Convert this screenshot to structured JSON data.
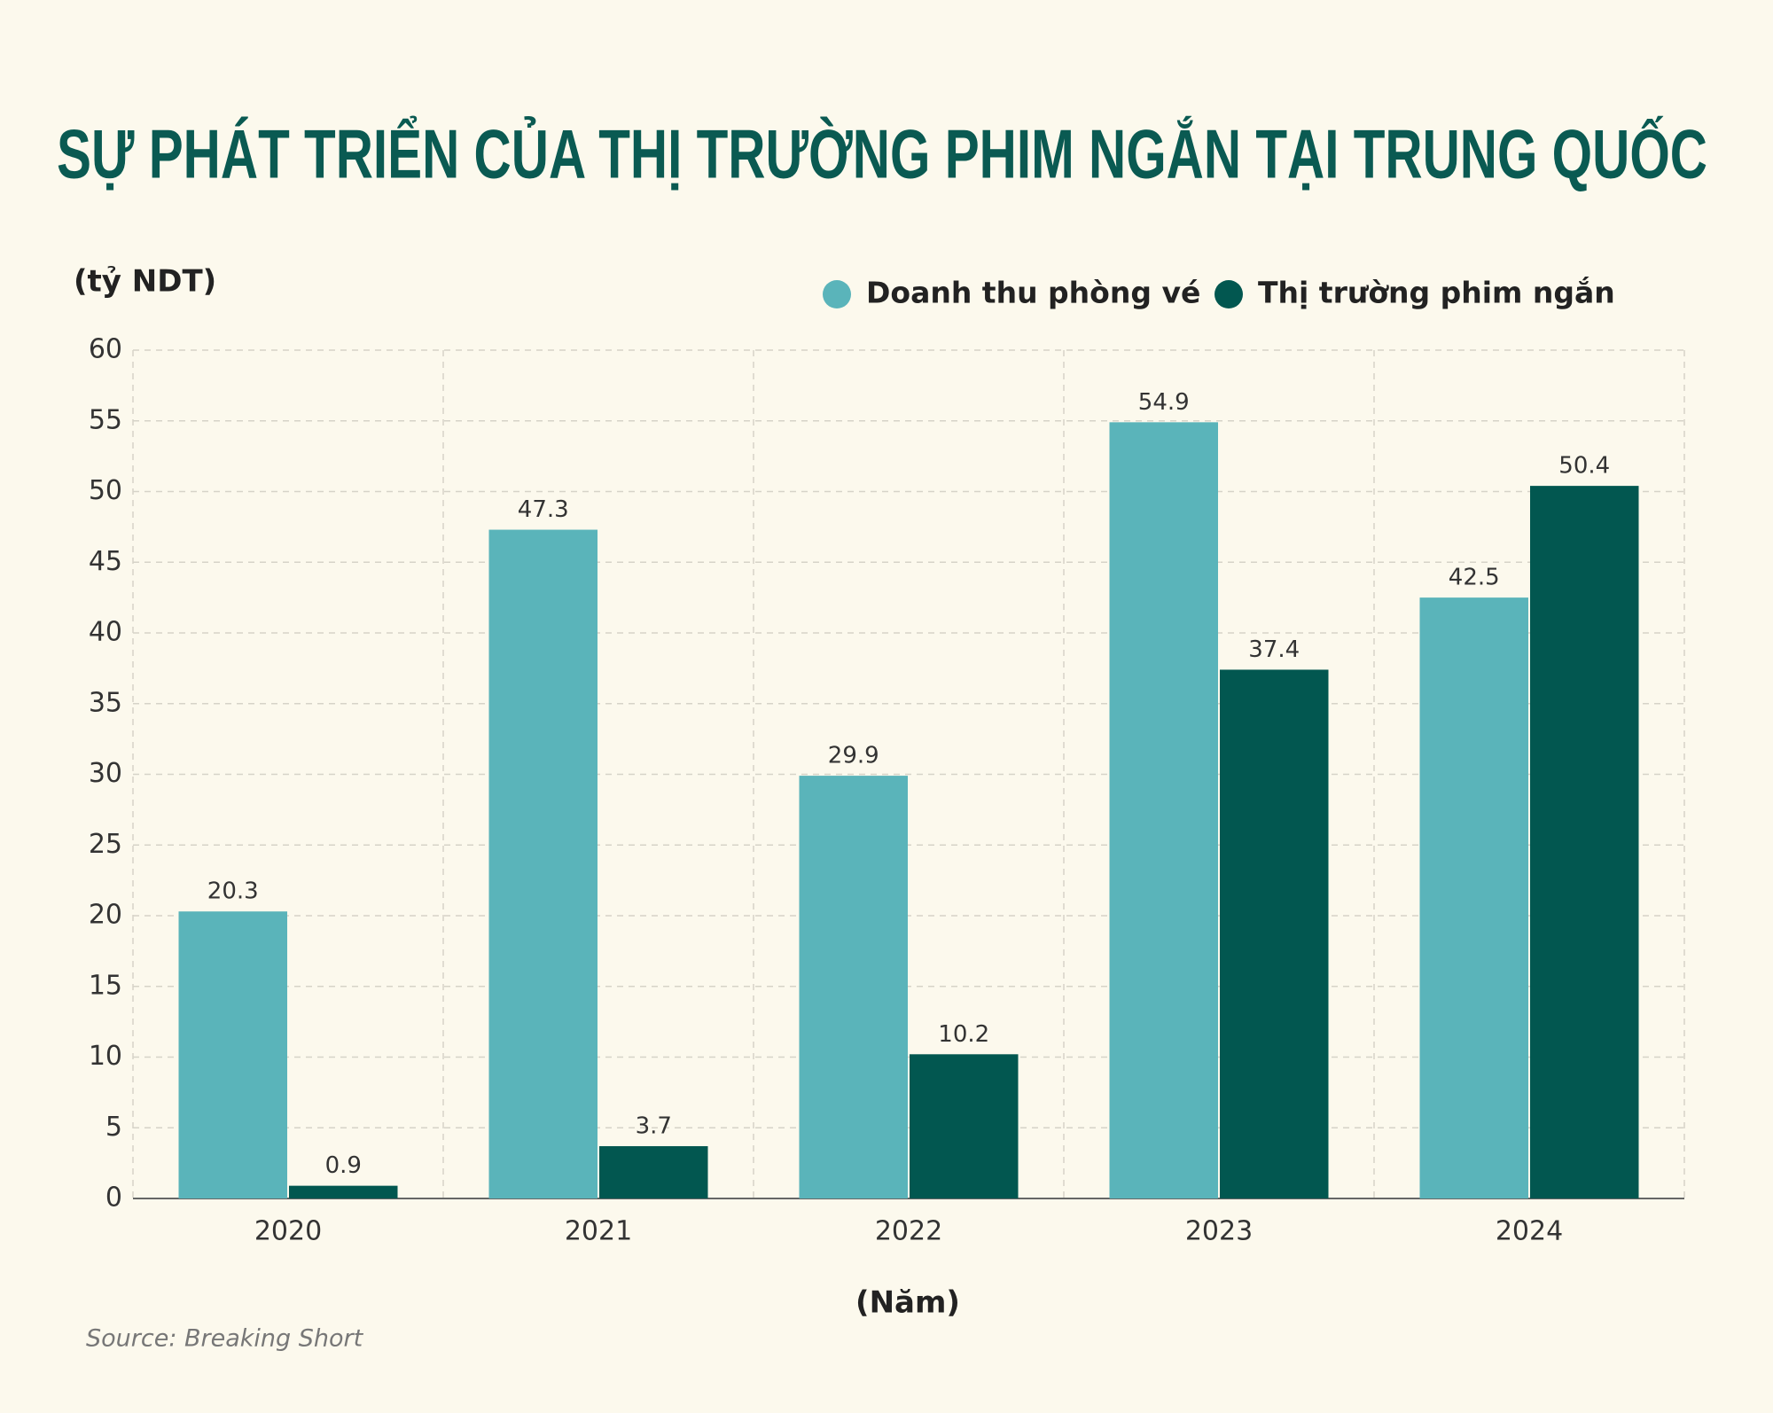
{
  "chart_data": {
    "type": "bar",
    "title": "SỰ PHÁT TRIỂN CỦA THỊ TRƯỜNG PHIM NGẮN TẠI TRUNG QUỐC",
    "y_label": "(tỷ NDT)",
    "x_label": "(Năm)",
    "source": "Source: Breaking Short",
    "categories": [
      "2020",
      "2021",
      "2022",
      "2023",
      "2024"
    ],
    "series": [
      {
        "name": "Doanh thu phòng vé",
        "color": "#5ab4ba",
        "values": [
          20.3,
          47.3,
          29.9,
          54.9,
          42.5
        ]
      },
      {
        "name": "Thị trường phim ngắn",
        "color": "#025750",
        "values": [
          0.9,
          3.7,
          10.2,
          37.4,
          50.4
        ]
      }
    ],
    "ylim": [
      0,
      60
    ],
    "yticks": [
      0,
      5,
      10,
      15,
      20,
      25,
      30,
      35,
      40,
      45,
      50,
      55,
      60
    ],
    "grid": true,
    "legend": "top-right"
  }
}
